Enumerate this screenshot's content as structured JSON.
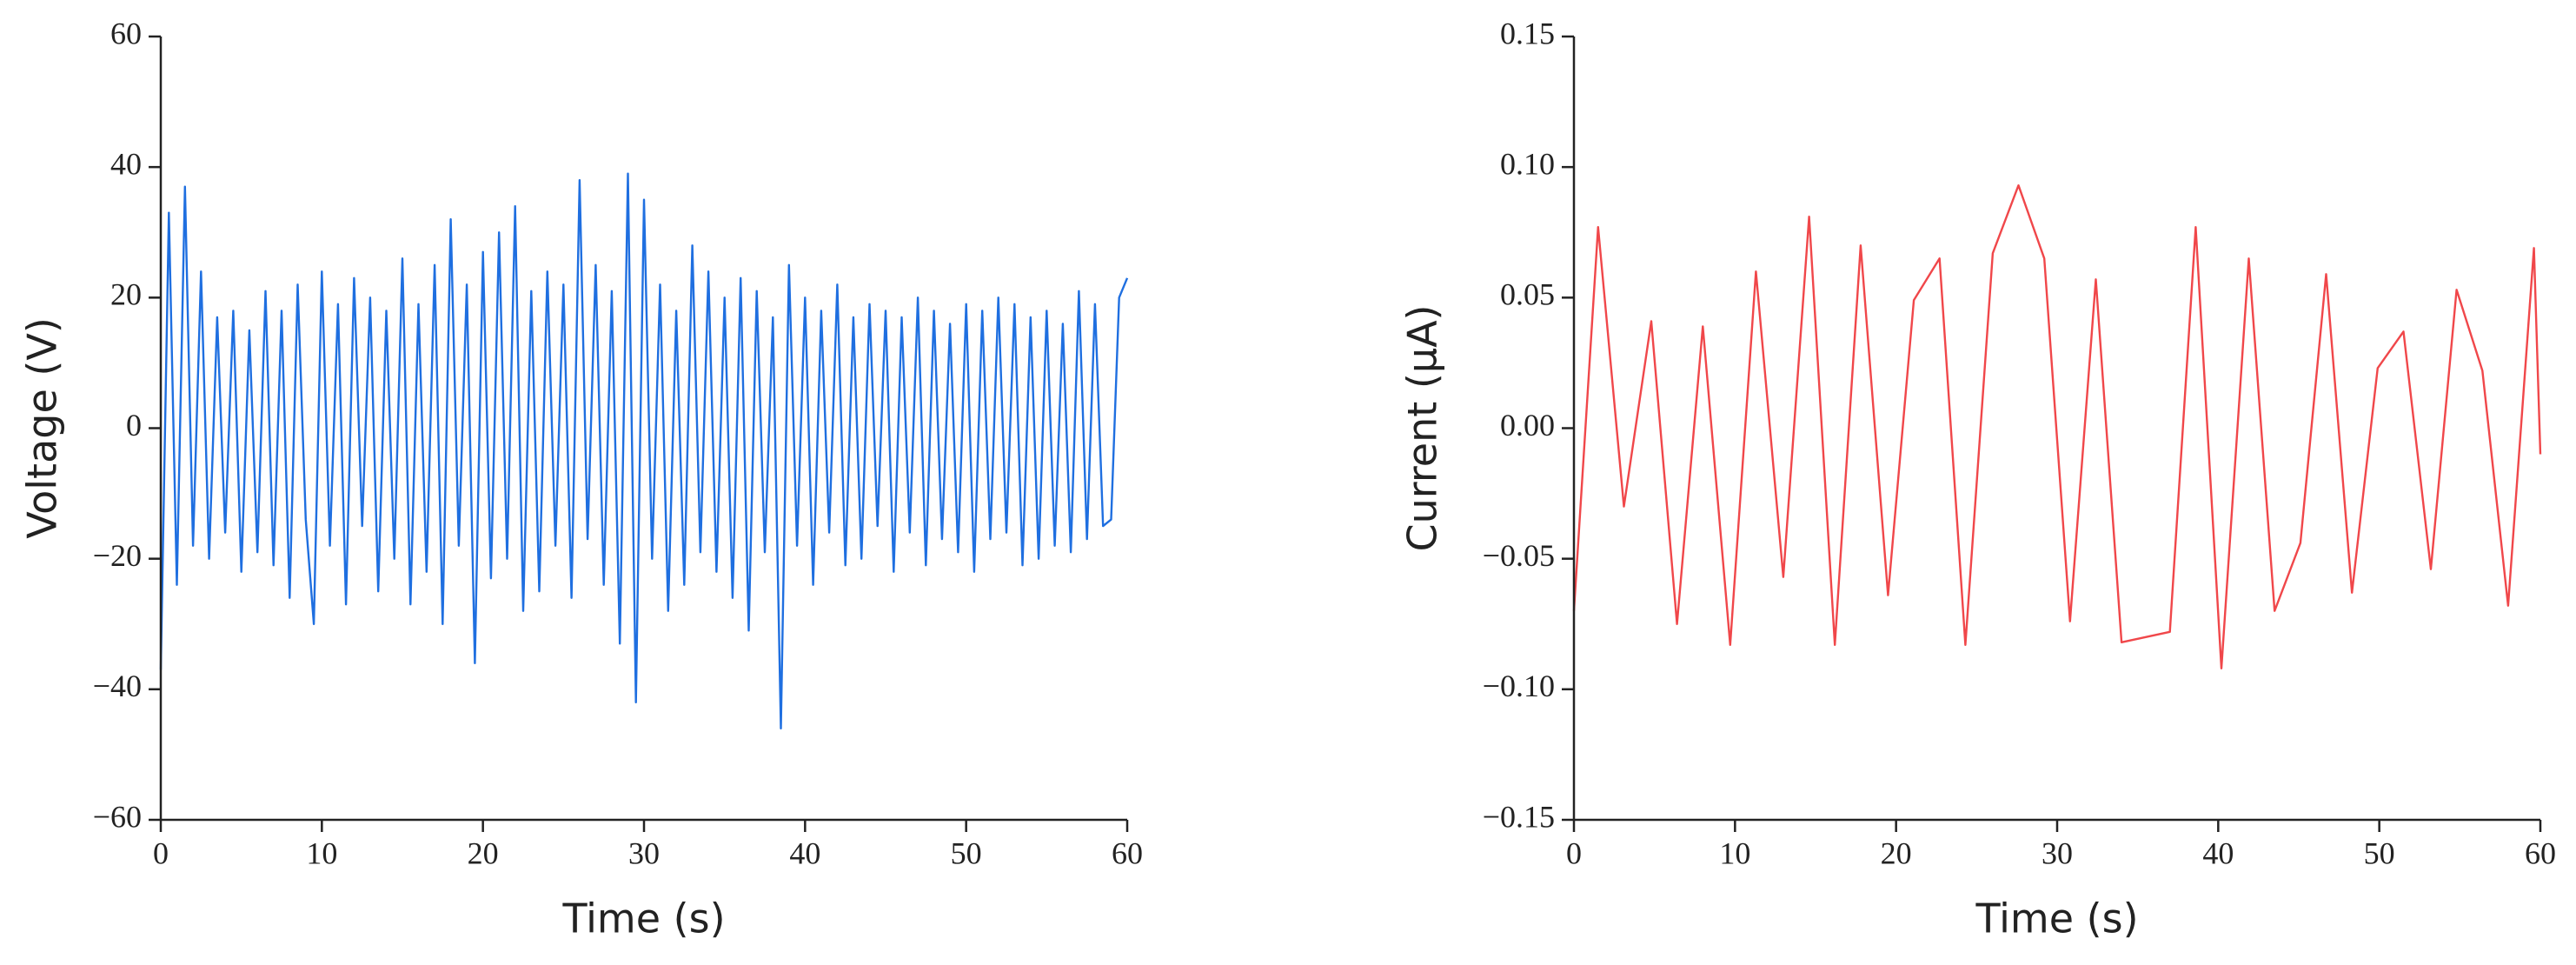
{
  "chart_data": [
    {
      "type": "line",
      "xlabel": "Time (s)",
      "ylabel": "Voltage (V)",
      "color": "#1f6fe0",
      "xlim": [
        0,
        60
      ],
      "xticks": [
        0,
        10,
        20,
        30,
        40,
        50,
        60
      ],
      "ylim": [
        -60,
        60
      ],
      "yticks": [
        {
          "value": -60,
          "label": "−60"
        },
        {
          "value": -40,
          "label": "−40"
        },
        {
          "value": -20,
          "label": "−20"
        },
        0,
        20,
        40,
        60
      ],
      "x": [
        0,
        0.5,
        1,
        1.5,
        2,
        2.5,
        3,
        3.5,
        4,
        4.5,
        5,
        5.5,
        6,
        6.5,
        7,
        7.5,
        8,
        8.5,
        9,
        9.5,
        10,
        10.5,
        11,
        11.5,
        12,
        12.5,
        13,
        13.5,
        14,
        14.5,
        15,
        15.5,
        16,
        16.5,
        17,
        17.5,
        18,
        18.5,
        19,
        19.5,
        20,
        20.5,
        21,
        21.5,
        22,
        22.5,
        23,
        23.5,
        24,
        24.5,
        25,
        25.5,
        26,
        26.5,
        27,
        27.5,
        28,
        28.5,
        29,
        29.5,
        30,
        30.5,
        31,
        31.5,
        32,
        32.5,
        33,
        33.5,
        34,
        34.5,
        35,
        35.5,
        36,
        36.5,
        37,
        37.5,
        38,
        38.5,
        39,
        39.5,
        40,
        40.5,
        41,
        41.5,
        42,
        42.5,
        43,
        43.5,
        44,
        44.5,
        45,
        45.5,
        46,
        46.5,
        47,
        47.5,
        48,
        48.5,
        49,
        49.5,
        50,
        50.5,
        51,
        51.5,
        52,
        52.5,
        53,
        53.5,
        54,
        54.5,
        55,
        55.5,
        56,
        56.5,
        57,
        57.5,
        58,
        58.5,
        59,
        59.5,
        60
      ],
      "values": [
        -37,
        33,
        -24,
        37,
        -18,
        24,
        -20,
        17,
        -16,
        18,
        -22,
        15,
        -19,
        21,
        -21,
        18,
        -26,
        22,
        -14,
        -30,
        24,
        -18,
        19,
        -27,
        23,
        -15,
        20,
        -25,
        18,
        -20,
        26,
        -27,
        19,
        -22,
        25,
        -30,
        32,
        -18,
        22,
        -36,
        27,
        -23,
        30,
        -20,
        34,
        -28,
        21,
        -25,
        24,
        -18,
        22,
        -26,
        38,
        -17,
        25,
        -24,
        21,
        -33,
        39,
        -42,
        35,
        -20,
        22,
        -28,
        18,
        -24,
        28,
        -19,
        24,
        -22,
        20,
        -26,
        23,
        -31,
        21,
        -19,
        17,
        -46,
        25,
        -18,
        20,
        -24,
        18,
        -16,
        22,
        -21,
        17,
        -20,
        19,
        -15,
        18,
        -22,
        17,
        -16,
        20,
        -21,
        18,
        -17,
        16,
        -19,
        19,
        -22,
        18,
        -17,
        20,
        -16,
        19,
        -21,
        17,
        -20,
        18,
        -18,
        16,
        -19,
        21,
        -17,
        19,
        -15,
        -14,
        20,
        23
      ]
    },
    {
      "type": "line",
      "xlabel": "Time (s)",
      "ylabel": "Current (μA)",
      "color": "#f0474a",
      "xlim": [
        0,
        60
      ],
      "xticks": [
        0,
        10,
        20,
        30,
        40,
        50,
        60
      ],
      "ylim": [
        -0.15,
        0.15
      ],
      "yticks": [
        {
          "value": -0.15,
          "label": "−0.15"
        },
        {
          "value": -0.1,
          "label": "−0.10"
        },
        {
          "value": -0.05,
          "label": "−0.05"
        },
        {
          "value": 0,
          "label": "0.00"
        },
        0.05,
        {
          "value": 0.1,
          "label": "0.10"
        },
        0.15
      ],
      "x": [
        0,
        1.5,
        3.1,
        4.8,
        6.4,
        8.0,
        9.7,
        11.3,
        13.0,
        14.6,
        16.2,
        17.8,
        19.5,
        21.1,
        22.7,
        24.3,
        26.0,
        27.6,
        29.2,
        30.8,
        32.4,
        34.0,
        37.0,
        38.6,
        40.2,
        41.9,
        43.5,
        45.1,
        46.7,
        48.3,
        49.9,
        51.5,
        53.2,
        54.8,
        56.4,
        58.0,
        59.6,
        60
      ],
      "values": [
        -0.07,
        0.077,
        -0.03,
        0.041,
        -0.075,
        0.039,
        -0.083,
        0.06,
        -0.057,
        0.081,
        -0.083,
        0.07,
        -0.064,
        0.049,
        0.065,
        -0.083,
        0.067,
        0.093,
        0.065,
        -0.074,
        0.057,
        -0.082,
        -0.078,
        0.077,
        -0.092,
        0.065,
        -0.07,
        -0.044,
        0.059,
        -0.063,
        0.023,
        0.037,
        -0.054,
        0.053,
        0.022,
        -0.068,
        0.069,
        -0.01
      ]
    }
  ]
}
